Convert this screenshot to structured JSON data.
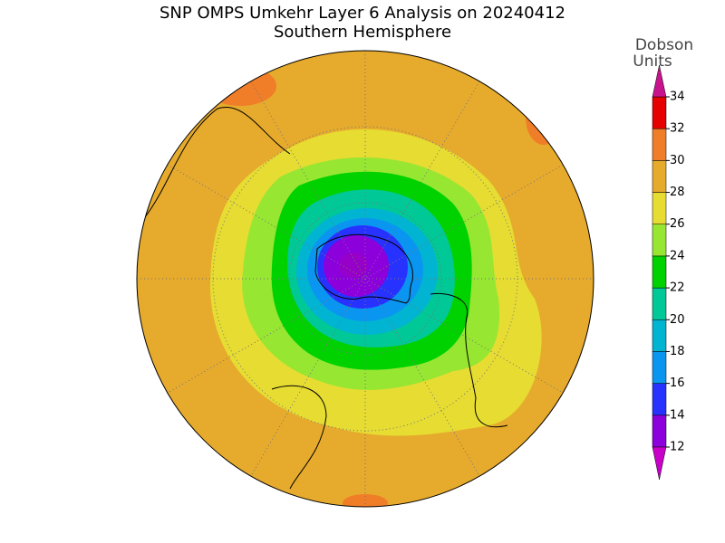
{
  "title": "SNP OMPS Umkehr Layer 6 Analysis on 20240412",
  "subtitle": "Southern Hemisphere",
  "colorbar": {
    "label": [
      "Dobson",
      "Units"
    ],
    "ticks": [
      12,
      14,
      16,
      18,
      20,
      22,
      24,
      26,
      28,
      30,
      32,
      34
    ],
    "colors": [
      "#8c00dc",
      "#2832ff",
      "#0a96f0",
      "#00b4d2",
      "#00c896",
      "#00d200",
      "#96e632",
      "#e6dc32",
      "#e6aa2d",
      "#f07d28",
      "#e60000"
    ],
    "under_color": "#c800c8",
    "over_color": "#c8148c"
  }
}
